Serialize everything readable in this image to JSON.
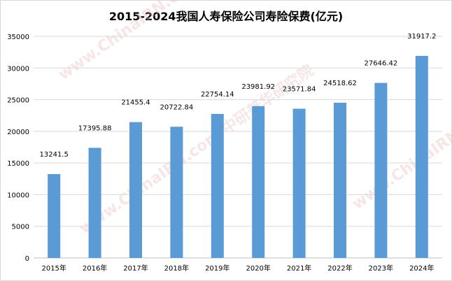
{
  "chart_data": {
    "type": "bar",
    "title": "2015-2024我国人寿保险公司寿险保费(亿元)",
    "categories": [
      "2015年",
      "2016年",
      "2017年",
      "2018年",
      "2019年",
      "2020年",
      "2021年",
      "2022年",
      "2023年",
      "2024年"
    ],
    "values": [
      13241.5,
      17395.88,
      21455.4,
      20722.84,
      22754.14,
      23981.92,
      23571.84,
      24518.62,
      27646.42,
      31917.2
    ],
    "value_labels": [
      "13241.5",
      "17395.88",
      "21455.4",
      "20722.84",
      "22754.14",
      "23981.92",
      "23571.84",
      "24518.62",
      "27646.42",
      "31917.2"
    ],
    "ylim": [
      0,
      35000
    ],
    "yticks": [
      0,
      5000,
      10000,
      15000,
      20000,
      25000,
      30000,
      35000
    ],
    "ytick_labels": [
      "0",
      "5000",
      "10000",
      "15000",
      "20000",
      "25000",
      "30000",
      "35000"
    ],
    "grid": true,
    "bar_color": "#5b9bd5",
    "grid_color": "#d9d9d9",
    "watermark": "www.ChinaIRN.com 中研普华研究院"
  }
}
